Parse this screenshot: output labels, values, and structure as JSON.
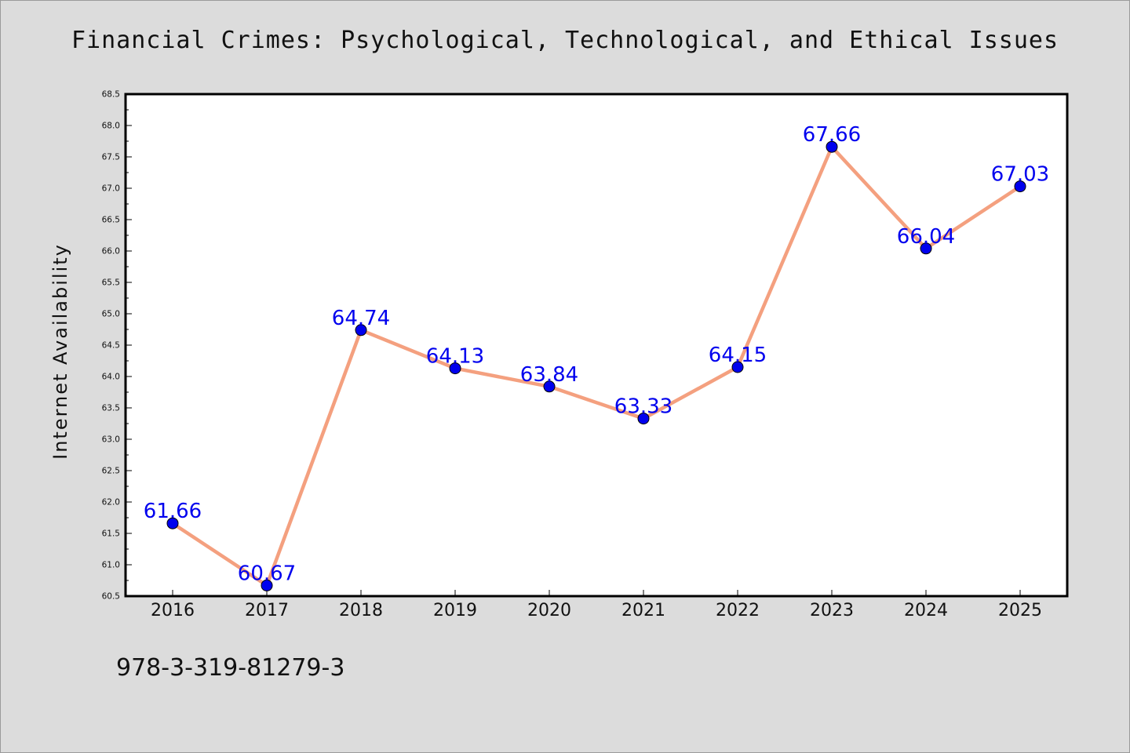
{
  "chart_data": {
    "type": "line",
    "title": "Financial Crimes: Psychological, Technological, and Ethical Issues",
    "ylabel": "Internet Availability",
    "xlabel": "",
    "x": [
      "2016",
      "2017",
      "2018",
      "2019",
      "2020",
      "2021",
      "2022",
      "2023",
      "2024",
      "2025"
    ],
    "series": [
      {
        "values": [
          61.66,
          60.67,
          64.74,
          64.13,
          63.84,
          63.33,
          64.15,
          67.66,
          66.04,
          67.03
        ],
        "data_labels": [
          "61.66",
          "60.67",
          "64.74",
          "64.13",
          "63.84",
          "63.33",
          "64.15",
          "67.66",
          "66.04",
          "67.03"
        ]
      }
    ],
    "ylim": [
      60.5,
      68.5
    ],
    "yticks": [
      "60.5",
      "61.0",
      "61.5",
      "62.0",
      "62.5",
      "63.0",
      "63.5",
      "64.0",
      "64.5",
      "65.0",
      "65.5",
      "66.0",
      "66.5",
      "67.0",
      "67.5",
      "68.0",
      "68.5"
    ],
    "grid": false,
    "legend": "none",
    "colors": {
      "line": "#f4a07f",
      "marker": "#0000ee",
      "label": "#0000ee",
      "plot_bg": "#ffffff",
      "page_bg": "#dcdcdc"
    }
  },
  "footer": {
    "code": "978-3-319-81279-3"
  }
}
